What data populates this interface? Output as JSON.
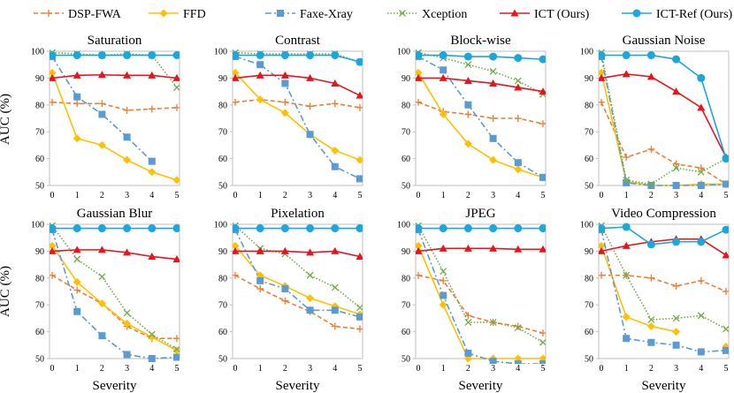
{
  "chart_data": {
    "type": "line",
    "figure_title": "",
    "x_label": "Severity",
    "y_label": "AUC (%)",
    "x": [
      0,
      1,
      2,
      3,
      4,
      5
    ],
    "ylim": [
      50,
      100
    ],
    "yticks": [
      50,
      60,
      70,
      80,
      90,
      100
    ],
    "legend": [
      {
        "name": "DSP-FWA",
        "color": "#ED7D31",
        "dash": "dash",
        "marker": "plus"
      },
      {
        "name": "FFD",
        "color": "#FFC000",
        "dash": "solid",
        "marker": "diamond"
      },
      {
        "name": "Faxe-Xray",
        "color": "#5B9BD5",
        "dash": "dashdot",
        "marker": "square"
      },
      {
        "name": "Xception",
        "color": "#70AD47",
        "dash": "dot",
        "marker": "x"
      },
      {
        "name": "ICT (Ours)",
        "color": "#E8141C",
        "dash": "solid",
        "marker": "triangle"
      },
      {
        "name": "ICT-Ref (Ours)",
        "color": "#1CA6DE",
        "dash": "solid",
        "marker": "circle"
      }
    ],
    "subplots": [
      {
        "title": "Saturation",
        "series": [
          [
            81,
            80.5,
            80.5,
            78,
            78.5,
            79
          ],
          [
            92,
            67.5,
            65,
            59.5,
            55,
            52
          ],
          [
            98,
            83,
            76.5,
            68,
            59,
            null
          ],
          [
            99.5,
            99,
            98.5,
            99,
            98.5,
            86.5
          ],
          [
            90,
            91,
            91.2,
            91,
            91,
            90
          ],
          [
            98.5,
            98.5,
            98.5,
            98.5,
            98.5,
            98.5
          ]
        ]
      },
      {
        "title": "Contrast",
        "series": [
          [
            81,
            82,
            81,
            79.5,
            80.5,
            79
          ],
          [
            92,
            82,
            77,
            69,
            63,
            59.5
          ],
          [
            98,
            95,
            88,
            69,
            57,
            52.5
          ],
          [
            99.5,
            99,
            99,
            99,
            99,
            96
          ],
          [
            90,
            91,
            91,
            90,
            88,
            83.5
          ],
          [
            98.5,
            98.5,
            98.5,
            98.5,
            98.5,
            96
          ]
        ]
      },
      {
        "title": "Block-wise",
        "series": [
          [
            81,
            77.5,
            76.5,
            75,
            75,
            73
          ],
          [
            92,
            76.5,
            65.5,
            59.5,
            56,
            53
          ],
          [
            98,
            93,
            80,
            67.5,
            58.5,
            53
          ],
          [
            99.5,
            97.5,
            95,
            92.5,
            89,
            84
          ],
          [
            90,
            90,
            89,
            88,
            86.5,
            85
          ],
          [
            98.5,
            98.5,
            98,
            98,
            97.5,
            97
          ]
        ]
      },
      {
        "title": "Gaussian Noise",
        "series": [
          [
            81,
            60.5,
            63.5,
            58,
            56.5,
            50.5
          ],
          [
            92,
            51.5,
            50,
            50,
            50.5,
            50.5
          ],
          [
            98,
            51,
            50,
            50,
            50,
            50.5
          ],
          [
            99.5,
            52,
            50.5,
            56.5,
            55,
            60
          ],
          [
            90,
            91.5,
            90.5,
            85,
            79,
            60.5
          ],
          [
            98.5,
            98.5,
            98.5,
            97,
            90,
            60
          ]
        ]
      },
      {
        "title": "Gaussian Blur",
        "series": [
          [
            81,
            75.5,
            70.5,
            62,
            57.5,
            57.5
          ],
          [
            92,
            78.5,
            70.5,
            63,
            58,
            53
          ],
          [
            98,
            67.5,
            58.5,
            51.5,
            50,
            50.5
          ],
          [
            99.5,
            87,
            80.5,
            67,
            59,
            53.5
          ],
          [
            90,
            90.5,
            90.5,
            89.5,
            88,
            87
          ],
          [
            98.5,
            98.5,
            98.5,
            98.5,
            98.5,
            98.5
          ]
        ]
      },
      {
        "title": "Pixelation",
        "series": [
          [
            81,
            76,
            71.5,
            67.5,
            62,
            61
          ],
          [
            92,
            81,
            77,
            72.5,
            69.5,
            66.5
          ],
          [
            98,
            79,
            76,
            68,
            68,
            65.5
          ],
          [
            99.5,
            91,
            89,
            81,
            76.5,
            69
          ],
          [
            90,
            90,
            90,
            89.5,
            90,
            88
          ],
          [
            98.5,
            98.5,
            98.5,
            98.5,
            98.5,
            98.5
          ]
        ]
      },
      {
        "title": "JPEG",
        "series": [
          [
            81,
            79,
            66,
            63.5,
            62,
            59.5
          ],
          [
            92,
            70,
            50,
            50,
            50,
            50
          ],
          [
            98,
            73.5,
            52,
            49,
            48,
            48
          ],
          [
            99.5,
            82.5,
            63.5,
            63.5,
            61.5,
            56
          ],
          [
            90,
            91,
            91,
            91,
            90.7,
            90.7
          ],
          [
            98.5,
            98.5,
            98.5,
            98.5,
            98.5,
            98.5
          ]
        ]
      },
      {
        "title": "Video Compression",
        "series": [
          [
            81,
            81,
            80,
            77,
            79,
            75
          ],
          [
            92,
            65.5,
            62,
            60,
            null,
            54.5
          ],
          [
            98,
            57.5,
            56,
            55,
            52.5,
            53
          ],
          [
            99.5,
            81,
            64.5,
            65,
            66,
            61
          ],
          [
            90,
            92,
            93.5,
            94.5,
            94.5,
            88.5
          ],
          [
            98.5,
            99,
            92.5,
            93.5,
            93.5,
            98
          ]
        ]
      }
    ]
  }
}
